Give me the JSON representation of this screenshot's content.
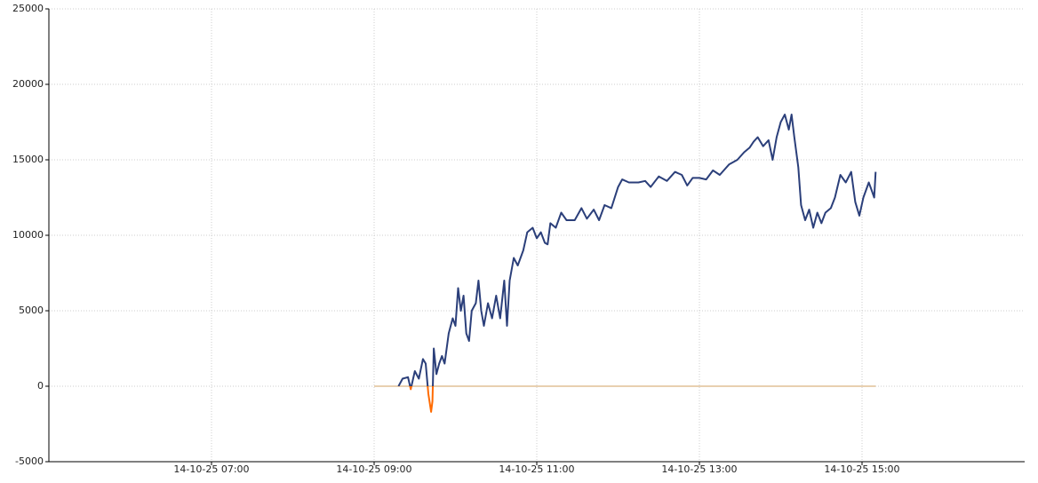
{
  "chart_data": {
    "type": "line",
    "xlim": [
      "14-10-25 05:00",
      "14-10-25 17:00"
    ],
    "xticks": [
      "14-10-25 07:00",
      "14-10-25 09:00",
      "14-10-25 11:00",
      "14-10-25 13:00",
      "14-10-25 15:00"
    ],
    "ylim": [
      -5000,
      25000
    ],
    "yticks": [
      -5000,
      0,
      5000,
      10000,
      15000,
      20000,
      25000
    ],
    "grid": true,
    "series": [
      {
        "color": "#2b3f7a",
        "negative_color": "#ff6a00",
        "x": [
          "14-10-25 09:18",
          "14-10-25 09:21",
          "14-10-25 09:25",
          "14-10-25 09:27",
          "14-10-25 09:30",
          "14-10-25 09:33",
          "14-10-25 09:36",
          "14-10-25 09:38",
          "14-10-25 09:40",
          "14-10-25 09:42",
          "14-10-25 09:43",
          "14-10-25 09:44",
          "14-10-25 09:46",
          "14-10-25 09:48",
          "14-10-25 09:50",
          "14-10-25 09:52",
          "14-10-25 09:55",
          "14-10-25 09:58",
          "14-10-25 10:00",
          "14-10-25 10:02",
          "14-10-25 10:04",
          "14-10-25 10:06",
          "14-10-25 10:08",
          "14-10-25 10:10",
          "14-10-25 10:12",
          "14-10-25 10:15",
          "14-10-25 10:17",
          "14-10-25 10:19",
          "14-10-25 10:21",
          "14-10-25 10:24",
          "14-10-25 10:27",
          "14-10-25 10:30",
          "14-10-25 10:33",
          "14-10-25 10:36",
          "14-10-25 10:38",
          "14-10-25 10:40",
          "14-10-25 10:43",
          "14-10-25 10:46",
          "14-10-25 10:50",
          "14-10-25 10:53",
          "14-10-25 10:57",
          "14-10-25 11:00",
          "14-10-25 11:03",
          "14-10-25 11:06",
          "14-10-25 11:08",
          "14-10-25 11:10",
          "14-10-25 11:14",
          "14-10-25 11:18",
          "14-10-25 11:22",
          "14-10-25 11:28",
          "14-10-25 11:33",
          "14-10-25 11:37",
          "14-10-25 11:42",
          "14-10-25 11:46",
          "14-10-25 11:50",
          "14-10-25 11:55",
          "14-10-25 12:00",
          "14-10-25 12:03",
          "14-10-25 12:08",
          "14-10-25 12:15",
          "14-10-25 12:20",
          "14-10-25 12:24",
          "14-10-25 12:30",
          "14-10-25 12:36",
          "14-10-25 12:42",
          "14-10-25 12:47",
          "14-10-25 12:51",
          "14-10-25 12:55",
          "14-10-25 13:00",
          "14-10-25 13:05",
          "14-10-25 13:10",
          "14-10-25 13:15",
          "14-10-25 13:22",
          "14-10-25 13:28",
          "14-10-25 13:33",
          "14-10-25 13:37",
          "14-10-25 13:40",
          "14-10-25 13:43",
          "14-10-25 13:47",
          "14-10-25 13:51",
          "14-10-25 13:54",
          "14-10-25 13:57",
          "14-10-25 14:00",
          "14-10-25 14:03",
          "14-10-25 14:06",
          "14-10-25 14:08",
          "14-10-25 14:10",
          "14-10-25 14:13",
          "14-10-25 14:15",
          "14-10-25 14:18",
          "14-10-25 14:21",
          "14-10-25 14:24",
          "14-10-25 14:27",
          "14-10-25 14:30",
          "14-10-25 14:33",
          "14-10-25 14:37",
          "14-10-25 14:40",
          "14-10-25 14:44",
          "14-10-25 14:48",
          "14-10-25 14:52",
          "14-10-25 14:55",
          "14-10-25 14:58",
          "14-10-25 15:01",
          "14-10-25 15:05",
          "14-10-25 15:07",
          "14-10-25 15:09",
          "14-10-25 15:10"
        ],
        "values": [
          0,
          500,
          600,
          -200,
          1000,
          500,
          1800,
          1500,
          -500,
          -1700,
          -1000,
          2500,
          800,
          1500,
          2000,
          1500,
          3500,
          4500,
          4000,
          6500,
          5000,
          6000,
          3500,
          3000,
          5000,
          5500,
          7000,
          5000,
          4000,
          5500,
          4500,
          6000,
          4500,
          7000,
          4000,
          7000,
          8500,
          8000,
          9000,
          10200,
          10500,
          9800,
          10200,
          9500,
          9400,
          10800,
          10500,
          11500,
          11000,
          11000,
          11800,
          11100,
          11700,
          11000,
          12000,
          11800,
          13200,
          13700,
          13500,
          13500,
          13600,
          13200,
          13900,
          13600,
          14200,
          14000,
          13300,
          13800,
          13800,
          13700,
          14300,
          14000,
          14700,
          15000,
          15500,
          15800,
          16200,
          16500,
          15900,
          16300,
          15000,
          16500,
          17500,
          18000,
          17000,
          18000,
          16500,
          14500,
          12000,
          11000,
          11700,
          10500,
          11500,
          10800,
          11500,
          11800,
          12500,
          14000,
          13500,
          14200,
          12200,
          11300,
          12500,
          13500,
          13000,
          12500,
          14200
        ]
      },
      {
        "color": "#d2a062",
        "x": [
          "14-10-25 09:00",
          "14-10-25 15:10"
        ],
        "values": [
          0,
          0
        ]
      }
    ]
  }
}
